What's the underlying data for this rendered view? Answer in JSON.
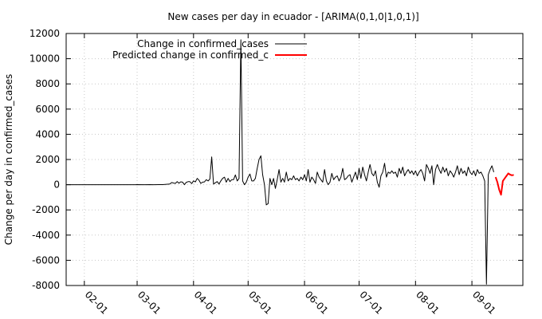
{
  "chart_data": {
    "type": "line",
    "title": "New cases per day in ecuador -  [ARIMA(0,1,0|1,0,1)]",
    "xlabel": "",
    "ylabel": "Change per day in confirmed_cases",
    "ylim": [
      -8000,
      12000
    ],
    "yticks": [
      12000,
      10000,
      8000,
      6000,
      4000,
      2000,
      0,
      -2000,
      -4000,
      -6000,
      -8000
    ],
    "xlim": [
      "2020-01-22",
      "2020-09-29"
    ],
    "xtick_dates": [
      "2020-02-01",
      "2020-03-01",
      "2020-04-01",
      "2020-05-01",
      "2020-06-01",
      "2020-07-01",
      "2020-08-01",
      "2020-09-01"
    ],
    "xtick_labels": [
      "02-01",
      "03-01",
      "04-01",
      "05-01",
      "06-01",
      "07-01",
      "08-01",
      "09-01"
    ],
    "grid": true,
    "legend_position": "top-left",
    "series": [
      {
        "name": "Change in confirmed_cases",
        "color": "#000000",
        "points": [
          [
            "2020-01-22",
            0
          ],
          [
            "2020-02-29",
            0
          ],
          [
            "2020-03-01",
            6
          ],
          [
            "2020-03-05",
            0
          ],
          [
            "2020-03-08",
            7
          ],
          [
            "2020-03-10",
            0
          ],
          [
            "2020-03-13",
            9
          ],
          [
            "2020-03-15",
            9
          ],
          [
            "2020-03-17",
            30
          ],
          [
            "2020-03-19",
            58
          ],
          [
            "2020-03-20",
            168
          ],
          [
            "2020-03-21",
            134
          ],
          [
            "2020-03-22",
            100
          ],
          [
            "2020-03-23",
            250
          ],
          [
            "2020-03-24",
            120
          ],
          [
            "2020-03-25",
            226
          ],
          [
            "2020-03-26",
            202
          ],
          [
            "2020-03-27",
            0
          ],
          [
            "2020-03-28",
            190
          ],
          [
            "2020-03-29",
            240
          ],
          [
            "2020-03-30",
            240
          ],
          [
            "2020-03-31",
            88
          ],
          [
            "2020-04-01",
            306
          ],
          [
            "2020-04-02",
            220
          ],
          [
            "2020-04-03",
            500
          ],
          [
            "2020-04-04",
            360
          ],
          [
            "2020-04-05",
            100
          ],
          [
            "2020-04-06",
            200
          ],
          [
            "2020-04-07",
            220
          ],
          [
            "2020-04-08",
            400
          ],
          [
            "2020-04-09",
            300
          ],
          [
            "2020-04-10",
            450
          ],
          [
            "2020-04-11",
            2200
          ],
          [
            "2020-04-12",
            50
          ],
          [
            "2020-04-13",
            150
          ],
          [
            "2020-04-14",
            250
          ],
          [
            "2020-04-15",
            50
          ],
          [
            "2020-04-16",
            300
          ],
          [
            "2020-04-17",
            500
          ],
          [
            "2020-04-18",
            600
          ],
          [
            "2020-04-19",
            200
          ],
          [
            "2020-04-20",
            500
          ],
          [
            "2020-04-21",
            250
          ],
          [
            "2020-04-22",
            400
          ],
          [
            "2020-04-23",
            400
          ],
          [
            "2020-04-24",
            780
          ],
          [
            "2020-04-25",
            300
          ],
          [
            "2020-04-26",
            500
          ],
          [
            "2020-04-27",
            11500
          ],
          [
            "2020-04-28",
            300
          ],
          [
            "2020-04-29",
            0
          ],
          [
            "2020-04-30",
            200
          ],
          [
            "2020-05-01",
            600
          ],
          [
            "2020-05-02",
            850
          ],
          [
            "2020-05-03",
            300
          ],
          [
            "2020-05-04",
            300
          ],
          [
            "2020-05-05",
            500
          ],
          [
            "2020-05-06",
            1300
          ],
          [
            "2020-05-07",
            2000
          ],
          [
            "2020-05-08",
            2300
          ],
          [
            "2020-05-09",
            800
          ],
          [
            "2020-05-10",
            0
          ],
          [
            "2020-05-11",
            -1600
          ],
          [
            "2020-05-12",
            -1500
          ],
          [
            "2020-05-13",
            500
          ],
          [
            "2020-05-14",
            0
          ],
          [
            "2020-05-15",
            500
          ],
          [
            "2020-05-16",
            -300
          ],
          [
            "2020-05-17",
            400
          ],
          [
            "2020-05-18",
            1200
          ],
          [
            "2020-05-19",
            200
          ],
          [
            "2020-05-20",
            500
          ],
          [
            "2020-05-21",
            200
          ],
          [
            "2020-05-22",
            1000
          ],
          [
            "2020-05-23",
            300
          ],
          [
            "2020-05-24",
            500
          ],
          [
            "2020-05-25",
            400
          ],
          [
            "2020-05-26",
            700
          ],
          [
            "2020-05-27",
            400
          ],
          [
            "2020-05-28",
            500
          ],
          [
            "2020-05-29",
            300
          ],
          [
            "2020-05-30",
            600
          ],
          [
            "2020-05-31",
            400
          ],
          [
            "2020-06-01",
            800
          ],
          [
            "2020-06-02",
            300
          ],
          [
            "2020-06-03",
            1200
          ],
          [
            "2020-06-04",
            200
          ],
          [
            "2020-06-05",
            600
          ],
          [
            "2020-06-06",
            400
          ],
          [
            "2020-06-07",
            100
          ],
          [
            "2020-06-08",
            1000
          ],
          [
            "2020-06-09",
            600
          ],
          [
            "2020-06-10",
            400
          ],
          [
            "2020-06-11",
            200
          ],
          [
            "2020-06-12",
            1200
          ],
          [
            "2020-06-13",
            300
          ],
          [
            "2020-06-14",
            0
          ],
          [
            "2020-06-15",
            200
          ],
          [
            "2020-06-16",
            900
          ],
          [
            "2020-06-17",
            400
          ],
          [
            "2020-06-18",
            600
          ],
          [
            "2020-06-19",
            700
          ],
          [
            "2020-06-20",
            300
          ],
          [
            "2020-06-21",
            600
          ],
          [
            "2020-06-22",
            1300
          ],
          [
            "2020-06-23",
            400
          ],
          [
            "2020-06-24",
            500
          ],
          [
            "2020-06-25",
            700
          ],
          [
            "2020-06-26",
            800
          ],
          [
            "2020-06-27",
            200
          ],
          [
            "2020-06-28",
            600
          ],
          [
            "2020-06-29",
            1000
          ],
          [
            "2020-06-30",
            400
          ],
          [
            "2020-07-01",
            1300
          ],
          [
            "2020-07-02",
            500
          ],
          [
            "2020-07-03",
            1400
          ],
          [
            "2020-07-04",
            800
          ],
          [
            "2020-07-05",
            300
          ],
          [
            "2020-07-06",
            1000
          ],
          [
            "2020-07-07",
            1600
          ],
          [
            "2020-07-08",
            900
          ],
          [
            "2020-07-09",
            700
          ],
          [
            "2020-07-10",
            1100
          ],
          [
            "2020-07-11",
            200
          ],
          [
            "2020-07-12",
            -200
          ],
          [
            "2020-07-13",
            700
          ],
          [
            "2020-07-14",
            1000
          ],
          [
            "2020-07-15",
            1700
          ],
          [
            "2020-07-16",
            600
          ],
          [
            "2020-07-17",
            1000
          ],
          [
            "2020-07-18",
            900
          ],
          [
            "2020-07-19",
            1100
          ],
          [
            "2020-07-20",
            900
          ],
          [
            "2020-07-21",
            1000
          ],
          [
            "2020-07-22",
            600
          ],
          [
            "2020-07-23",
            1300
          ],
          [
            "2020-07-24",
            900
          ],
          [
            "2020-07-25",
            1400
          ],
          [
            "2020-07-26",
            700
          ],
          [
            "2020-07-27",
            1000
          ],
          [
            "2020-07-28",
            1200
          ],
          [
            "2020-07-29",
            900
          ],
          [
            "2020-07-30",
            1100
          ],
          [
            "2020-07-31",
            800
          ],
          [
            "2020-08-01",
            1100
          ],
          [
            "2020-08-02",
            700
          ],
          [
            "2020-08-03",
            1000
          ],
          [
            "2020-08-04",
            1200
          ],
          [
            "2020-08-05",
            900
          ],
          [
            "2020-08-06",
            300
          ],
          [
            "2020-08-07",
            1600
          ],
          [
            "2020-08-08",
            1300
          ],
          [
            "2020-08-09",
            900
          ],
          [
            "2020-08-10",
            1500
          ],
          [
            "2020-08-11",
            0
          ],
          [
            "2020-08-12",
            1200
          ],
          [
            "2020-08-13",
            1600
          ],
          [
            "2020-08-14",
            1200
          ],
          [
            "2020-08-15",
            900
          ],
          [
            "2020-08-16",
            1400
          ],
          [
            "2020-08-17",
            1000
          ],
          [
            "2020-08-18",
            1300
          ],
          [
            "2020-08-19",
            700
          ],
          [
            "2020-08-20",
            1100
          ],
          [
            "2020-08-21",
            900
          ],
          [
            "2020-08-22",
            600
          ],
          [
            "2020-08-23",
            1000
          ],
          [
            "2020-08-24",
            1500
          ],
          [
            "2020-08-25",
            800
          ],
          [
            "2020-08-26",
            1300
          ],
          [
            "2020-08-27",
            900
          ],
          [
            "2020-08-28",
            1100
          ],
          [
            "2020-08-29",
            700
          ],
          [
            "2020-08-30",
            1400
          ],
          [
            "2020-08-31",
            1000
          ],
          [
            "2020-09-01",
            800
          ],
          [
            "2020-09-02",
            1100
          ],
          [
            "2020-09-03",
            700
          ],
          [
            "2020-09-04",
            1200
          ],
          [
            "2020-09-05",
            900
          ],
          [
            "2020-09-06",
            1000
          ],
          [
            "2020-09-07",
            700
          ],
          [
            "2020-09-08",
            300
          ],
          [
            "2020-09-09",
            -7900
          ],
          [
            "2020-09-10",
            800
          ],
          [
            "2020-09-11",
            1200
          ],
          [
            "2020-09-12",
            1500
          ],
          [
            "2020-09-13",
            1000
          ]
        ]
      },
      {
        "name": "Predicted change in confirmed_c",
        "color": "#ff0000",
        "points": [
          [
            "2020-09-14",
            600
          ],
          [
            "2020-09-15",
            200
          ],
          [
            "2020-09-16",
            -400
          ],
          [
            "2020-09-17",
            -800
          ],
          [
            "2020-09-18",
            300
          ],
          [
            "2020-09-19",
            500
          ],
          [
            "2020-09-20",
            700
          ],
          [
            "2020-09-21",
            900
          ],
          [
            "2020-09-22",
            800
          ],
          [
            "2020-09-23",
            750
          ],
          [
            "2020-09-24",
            780
          ]
        ]
      }
    ]
  }
}
